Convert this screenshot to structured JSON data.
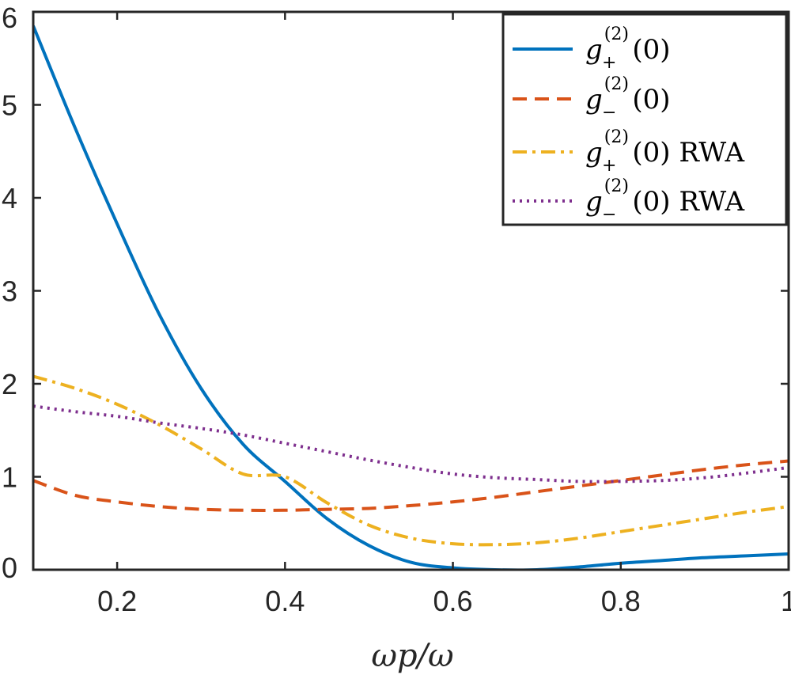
{
  "chart_data": {
    "type": "line",
    "xlabel": "ωp/ω",
    "xlim": [
      0.1,
      1.0
    ],
    "ylim": [
      0,
      6
    ],
    "xticks": [
      0.2,
      0.4,
      0.6,
      0.8,
      1.0
    ],
    "xtick_labels": [
      "0.2",
      "0.4",
      "0.6",
      "0.8",
      "1"
    ],
    "yticks": [
      0,
      1,
      2,
      3,
      4,
      5,
      6
    ],
    "ytick_labels": [
      "0",
      "1",
      "2",
      "3",
      "4",
      "5",
      "6"
    ],
    "grid": false,
    "legend_position": "top-right",
    "x": [
      0.1,
      0.15,
      0.2,
      0.25,
      0.3,
      0.35,
      0.4,
      0.45,
      0.5,
      0.55,
      0.6,
      0.65,
      0.7,
      0.75,
      0.8,
      0.85,
      0.9,
      0.95,
      1.0
    ],
    "series": [
      {
        "name": "g₊⁽²⁾(0)",
        "legend": {
          "sup": "(2)",
          "sub": "+",
          "suffix": ""
        },
        "color": "#0072BD",
        "style": "solid",
        "values": [
          5.85,
          4.75,
          3.72,
          2.75,
          1.95,
          1.35,
          0.95,
          0.55,
          0.26,
          0.08,
          0.02,
          0.0,
          0.0,
          0.03,
          0.07,
          0.1,
          0.13,
          0.15,
          0.17
        ]
      },
      {
        "name": "g₋⁽²⁾(0)",
        "legend": {
          "sup": "(2)",
          "sub": "−",
          "suffix": ""
        },
        "color": "#D95319",
        "style": "dashed",
        "values": [
          0.96,
          0.8,
          0.73,
          0.68,
          0.65,
          0.64,
          0.64,
          0.65,
          0.66,
          0.69,
          0.73,
          0.78,
          0.84,
          0.9,
          0.96,
          1.02,
          1.08,
          1.13,
          1.17
        ]
      },
      {
        "name": "g₊⁽²⁾(0) RWA",
        "legend": {
          "sup": "(2)",
          "sub": "+",
          "suffix": "RWA"
        },
        "color": "#EDB120",
        "style": "dashdot",
        "values": [
          2.08,
          1.95,
          1.78,
          1.56,
          1.3,
          1.03,
          1.0,
          0.72,
          0.48,
          0.34,
          0.28,
          0.27,
          0.29,
          0.34,
          0.41,
          0.48,
          0.55,
          0.62,
          0.68
        ]
      },
      {
        "name": "g₋⁽²⁾(0) RWA",
        "legend": {
          "sup": "(2)",
          "sub": "−",
          "suffix": "RWA"
        },
        "color": "#7E2F8E",
        "style": "dotted",
        "values": [
          1.76,
          1.7,
          1.65,
          1.58,
          1.52,
          1.45,
          1.36,
          1.27,
          1.18,
          1.1,
          1.03,
          0.99,
          0.97,
          0.95,
          0.95,
          0.96,
          0.99,
          1.04,
          1.1
        ]
      }
    ]
  }
}
